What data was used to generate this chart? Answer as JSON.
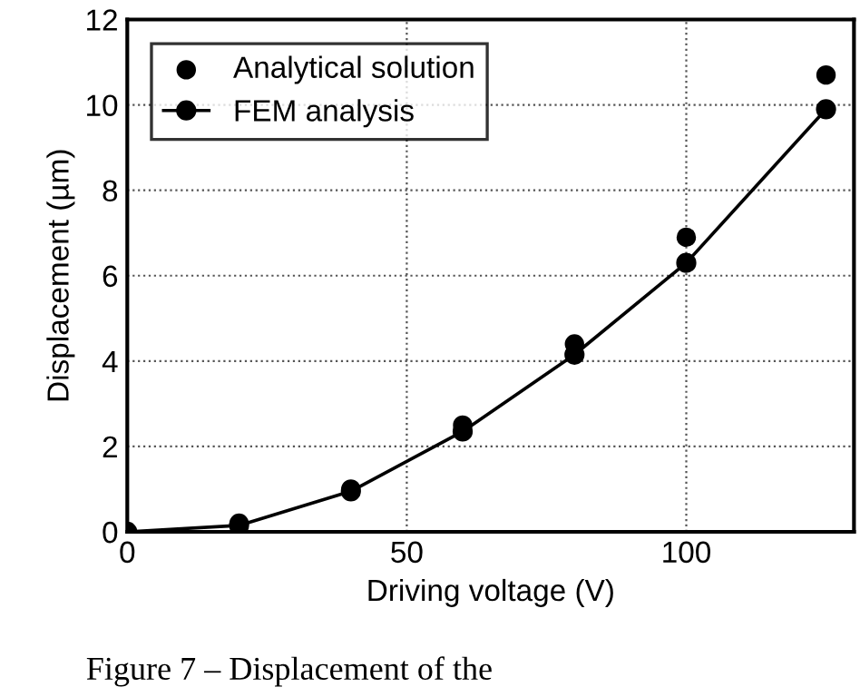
{
  "chart_data": {
    "type": "scatter",
    "xlabel": "Driving voltage (V)",
    "ylabel": "Displacement (µm)",
    "x": [
      0,
      20,
      40,
      60,
      80,
      100,
      125
    ],
    "series": [
      {
        "name": "Analytical solution",
        "color": "#000000",
        "values": [
          null,
          0.2,
          1.0,
          2.5,
          4.4,
          6.9,
          10.7
        ]
      },
      {
        "name": "FEM analysis",
        "type": "line",
        "color": "#000000",
        "values": [
          0,
          0.15,
          0.95,
          2.35,
          4.15,
          6.3,
          9.9
        ]
      }
    ],
    "xlim": [
      0,
      130
    ],
    "ylim": [
      0,
      12
    ],
    "xticks": [
      0,
      50,
      100
    ],
    "yticks": [
      0,
      2,
      4,
      6,
      8,
      10,
      12
    ],
    "grid": true,
    "legend": "top left",
    "marker": "circle",
    "line_style": "solid",
    "annotations": [
      "Figure 7 – Displacement of the"
    ]
  }
}
